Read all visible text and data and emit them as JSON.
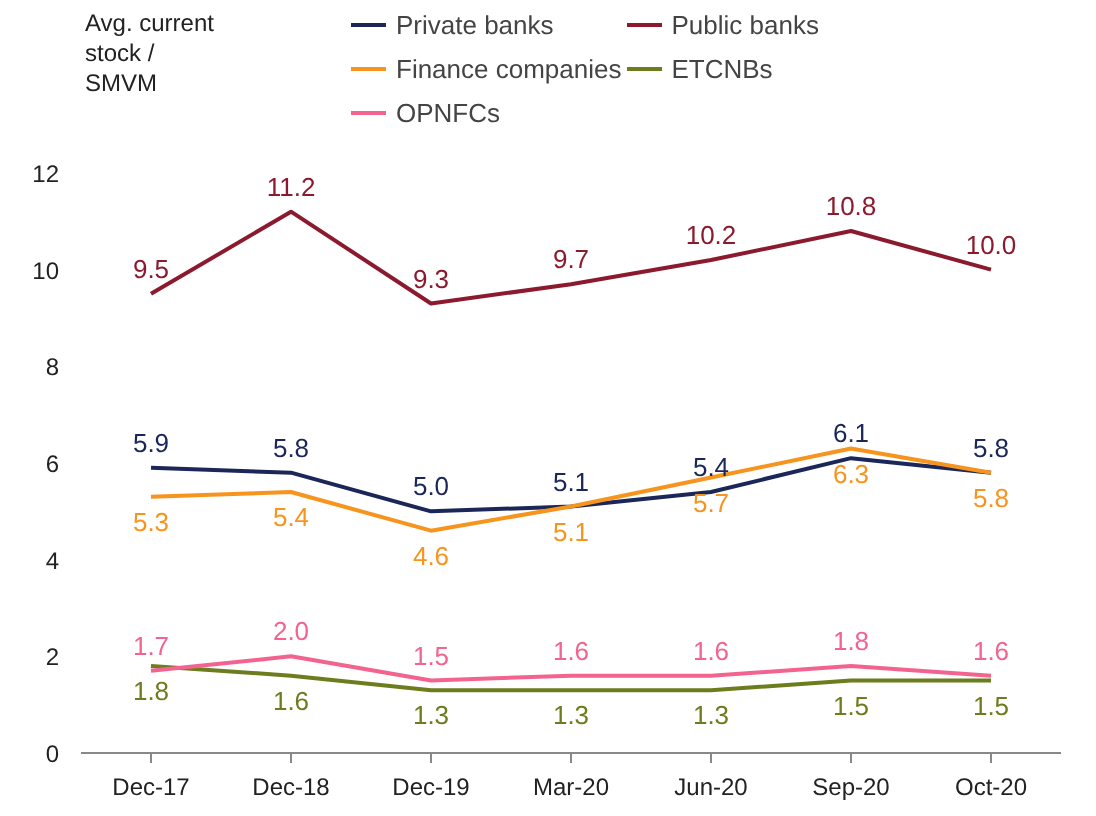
{
  "chart_data": {
    "type": "line",
    "ylabel": "Avg. current stock / SMVM",
    "categories": [
      "Dec-17",
      "Dec-18",
      "Dec-19",
      "Mar-20",
      "Jun-20",
      "Sep-20",
      "Oct-20"
    ],
    "series": [
      {
        "name": "Private banks",
        "color": "#1b2759",
        "values": [
          5.9,
          5.8,
          5.0,
          5.1,
          5.4,
          6.1,
          5.8
        ],
        "value_labels": [
          "5.9",
          "5.8",
          "5.0",
          "5.1",
          "5.4",
          "6.1",
          "5.8"
        ]
      },
      {
        "name": "Public banks",
        "color": "#8c1a2e",
        "values": [
          9.5,
          11.2,
          9.3,
          9.7,
          10.2,
          10.8,
          10.0
        ],
        "value_labels": [
          "9.5",
          "11.2",
          "9.3",
          "9.7",
          "10.2",
          "10.8",
          "10.0"
        ]
      },
      {
        "name": "Finance companies",
        "color": "#f7941d",
        "values": [
          5.3,
          5.4,
          4.6,
          5.1,
          5.7,
          6.3,
          5.8
        ],
        "value_labels": [
          "5.3",
          "5.4",
          "4.6",
          "5.1",
          "5.7",
          "6.3",
          "5.8"
        ]
      },
      {
        "name": "ETCNBs",
        "color": "#6b7d1c",
        "values": [
          1.8,
          1.6,
          1.3,
          1.3,
          1.3,
          1.5,
          1.5
        ],
        "value_labels": [
          "1.8",
          "1.6",
          "1.3",
          "1.3",
          "1.3",
          "1.5",
          "1.5"
        ]
      },
      {
        "name": "OPNFCs",
        "color": "#f2648f",
        "values": [
          1.7,
          2.0,
          1.5,
          1.6,
          1.6,
          1.8,
          1.6
        ],
        "value_labels": [
          "1.7",
          "2.0",
          "1.5",
          "1.6",
          "1.6",
          "1.8",
          "1.6"
        ]
      }
    ],
    "ylim": [
      0,
      12
    ],
    "yticks": [
      0,
      2,
      4,
      6,
      8,
      10,
      12
    ],
    "legend": "top",
    "line_style": "solid"
  }
}
